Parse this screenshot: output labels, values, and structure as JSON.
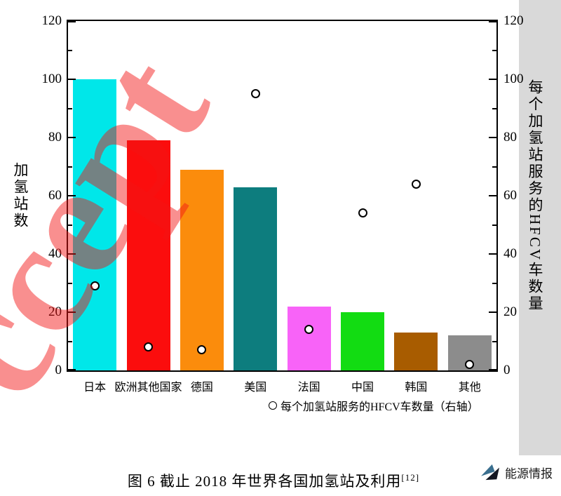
{
  "watermark": {
    "text": "ccept"
  },
  "chart_data": {
    "type": "bar",
    "categories": [
      "日本",
      "欧洲其他国家",
      "德国",
      "美国",
      "法国",
      "中国",
      "韩国",
      "其他"
    ],
    "series": [
      {
        "name": "加氢站数",
        "type": "bar",
        "values": [
          100,
          79,
          69,
          63,
          22,
          20,
          13,
          12
        ]
      },
      {
        "name": "每个加氢站服务的HFCV车数量",
        "type": "scatter",
        "values": [
          29,
          8,
          7,
          95,
          14,
          54,
          64,
          2
        ]
      }
    ],
    "bar_colors": [
      "#00e7e9",
      "#fb0d0d",
      "#fb8c0c",
      "#0d7d7e",
      "#f863f8",
      "#12dc12",
      "#a85c00",
      "#8c8c8c"
    ],
    "ylabel_left": "加氢站数",
    "ylabel_right": "每个加氢站服务的HFCV车数量",
    "ylim": [
      0,
      120
    ],
    "yticks": [
      0,
      20,
      40,
      60,
      80,
      100,
      120
    ],
    "minor_tick_step": 10,
    "grid": "off",
    "legend_label": "每个加氢站服务的HFCV车数量（右轴）",
    "legend_position": "below-x-axis"
  },
  "caption": {
    "text": "图 6  截止 2018 年世界各国加氢站及利用",
    "ref": "[12]"
  },
  "logo": {
    "text": "能源情报"
  }
}
